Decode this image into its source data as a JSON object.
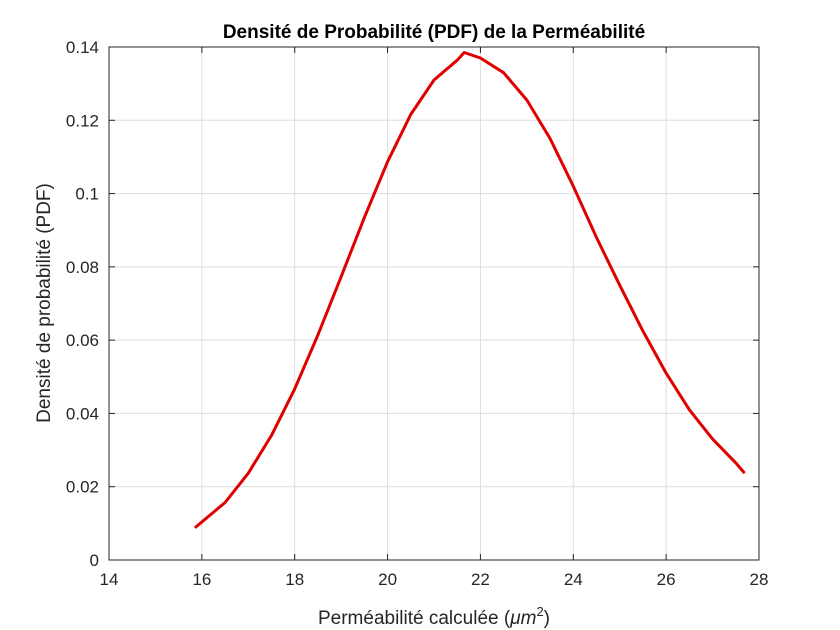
{
  "chart_data": {
    "type": "line",
    "title": "Densité de Probabilité (PDF) de la Perméabilité",
    "xlabel": "Perméabilité calculée (",
    "xlabel_unit": "μm",
    "xlabel_exponent": "2",
    "xlabel_close": ")",
    "ylabel": "Densité de probabilité (PDF)",
    "xlim": [
      14,
      28
    ],
    "ylim": [
      0,
      0.14
    ],
    "xticks": [
      "14",
      "16",
      "18",
      "20",
      "22",
      "24",
      "26",
      "28"
    ],
    "yticks": [
      "0",
      "0.02",
      "0.04",
      "0.06",
      "0.08",
      "0.1",
      "0.12",
      "0.14"
    ],
    "grid": true,
    "line_color": "#e00000",
    "series": [
      {
        "x": [
          15.87,
          16.5,
          17.0,
          17.5,
          18.0,
          18.5,
          19.0,
          19.5,
          20.0,
          20.5,
          21.0,
          21.5,
          21.65,
          22.0,
          22.5,
          23.0,
          23.5,
          24.0,
          24.5,
          25.0,
          25.5,
          26.0,
          26.5,
          27.0,
          27.5,
          27.67
        ],
        "y": [
          0.009,
          0.0157,
          0.0237,
          0.034,
          0.0467,
          0.0614,
          0.0773,
          0.0935,
          0.1087,
          0.1216,
          0.131,
          0.1364,
          0.1385,
          0.137,
          0.133,
          0.1255,
          0.115,
          0.102,
          0.088,
          0.075,
          0.0625,
          0.051,
          0.041,
          0.033,
          0.0265,
          0.024
        ]
      }
    ]
  }
}
